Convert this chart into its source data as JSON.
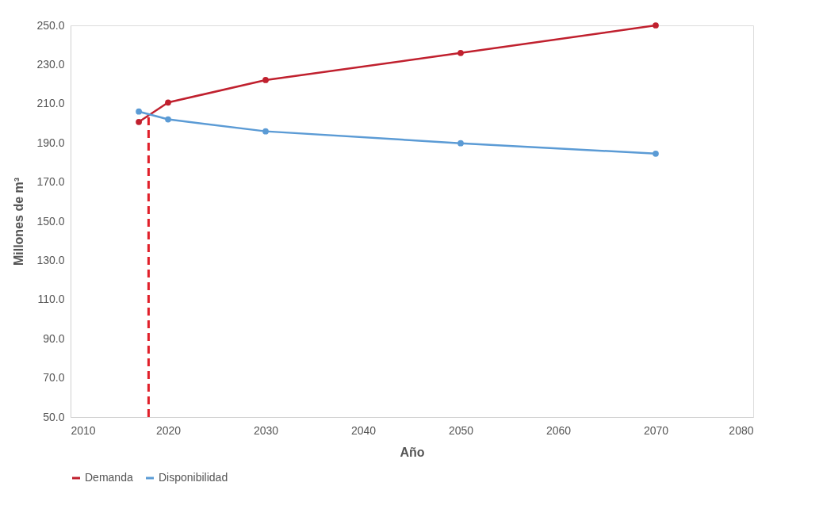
{
  "chart_data": {
    "type": "line",
    "xlabel": "Año",
    "ylabel": "Millones de m³",
    "x": [
      2017,
      2020,
      2030,
      2050,
      2070
    ],
    "series": [
      {
        "name": "Demanda",
        "color": "#c0202e",
        "values": [
          200.7,
          210.6,
          222.1,
          235.9,
          250.0
        ]
      },
      {
        "name": "Disponibilidad",
        "color": "#5b9bd5",
        "values": [
          206.0,
          202.0,
          195.9,
          189.8,
          184.5
        ]
      },
      {
        "color": "#e0202a",
        "x": [
          2018,
          2018
        ],
        "values": [
          50.0,
          205.0
        ],
        "line_style": "dashed",
        "marker": "none"
      }
    ],
    "xlim": [
      2010,
      2080
    ],
    "xticks": [
      2010,
      2020,
      2030,
      2040,
      2050,
      2060,
      2070,
      2080
    ],
    "ylim": [
      50,
      250
    ],
    "yticks": [
      {
        "value": 50,
        "label": "50.0"
      },
      {
        "value": 70,
        "label": "70.0"
      },
      {
        "value": 90,
        "label": "90.0"
      },
      {
        "value": 110,
        "label": "110.0"
      },
      {
        "value": 130,
        "label": "130.0"
      },
      {
        "value": 150,
        "label": "150.0"
      },
      {
        "value": 170,
        "label": "170.0"
      },
      {
        "value": 190,
        "label": "190.0"
      },
      {
        "value": 210,
        "label": "210.0"
      },
      {
        "value": 230,
        "label": "230.0"
      },
      {
        "value": 250,
        "label": "250.0"
      }
    ],
    "grid": false,
    "legend": "bottom",
    "marker": "circle",
    "line_style": "solid"
  }
}
